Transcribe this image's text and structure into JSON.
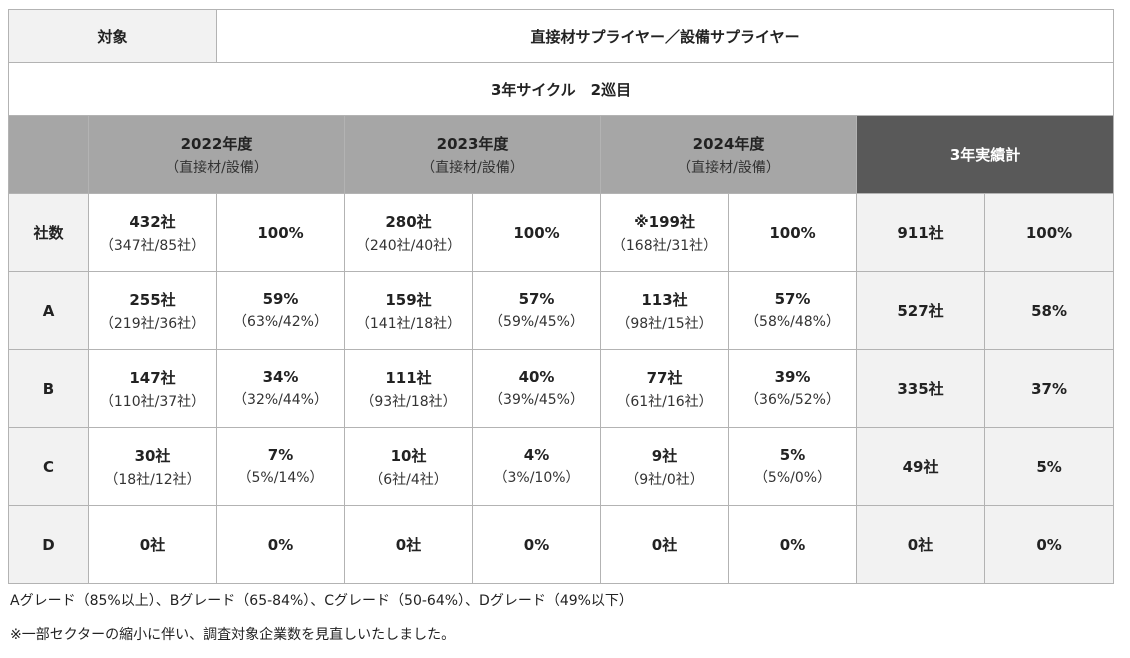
{
  "header": {
    "target_label": "対象",
    "target_value": "直接材サプライヤー／設備サプライヤー",
    "cycle": "3年サイクル　2巡目"
  },
  "years": [
    {
      "title": "2022年度",
      "sub": "（直接材/設備）"
    },
    {
      "title": "2023年度",
      "sub": "（直接材/設備）"
    },
    {
      "title": "2024年度",
      "sub": "（直接材/設備）"
    }
  ],
  "total_header": "3年実績計",
  "rows": [
    {
      "label": "社数",
      "years": [
        {
          "count": "432社",
          "count_sub": "（347社/85社）",
          "pct": "100%",
          "pct_sub": ""
        },
        {
          "count": "280社",
          "count_sub": "（240社/40社）",
          "pct": "100%",
          "pct_sub": ""
        },
        {
          "count": "※199社",
          "count_sub": "（168社/31社）",
          "pct": "100%",
          "pct_sub": ""
        }
      ],
      "total_count": "911社",
      "total_pct": "100%"
    },
    {
      "label": "A",
      "years": [
        {
          "count": "255社",
          "count_sub": "（219社/36社）",
          "pct": "59%",
          "pct_sub": "（63%/42%）"
        },
        {
          "count": "159社",
          "count_sub": "（141社/18社）",
          "pct": "57%",
          "pct_sub": "（59%/45%）"
        },
        {
          "count": "113社",
          "count_sub": "（98社/15社）",
          "pct": "57%",
          "pct_sub": "（58%/48%）"
        }
      ],
      "total_count": "527社",
      "total_pct": "58%"
    },
    {
      "label": "B",
      "years": [
        {
          "count": "147社",
          "count_sub": "（110社/37社）",
          "pct": "34%",
          "pct_sub": "（32%/44%）"
        },
        {
          "count": "111社",
          "count_sub": "（93社/18社）",
          "pct": "40%",
          "pct_sub": "（39%/45%）"
        },
        {
          "count": "77社",
          "count_sub": "（61社/16社）",
          "pct": "39%",
          "pct_sub": "（36%/52%）"
        }
      ],
      "total_count": "335社",
      "total_pct": "37%"
    },
    {
      "label": "C",
      "years": [
        {
          "count": "30社",
          "count_sub": "（18社/12社）",
          "pct": "7%",
          "pct_sub": "（5%/14%）"
        },
        {
          "count": "10社",
          "count_sub": "（6社/4社）",
          "pct": "4%",
          "pct_sub": "（3%/10%）"
        },
        {
          "count": "9社",
          "count_sub": "（9社/0社）",
          "pct": "5%",
          "pct_sub": "（5%/0%）"
        }
      ],
      "total_count": "49社",
      "total_pct": "5%"
    },
    {
      "label": "D",
      "years": [
        {
          "count": "0社",
          "count_sub": "",
          "pct": "0%",
          "pct_sub": ""
        },
        {
          "count": "0社",
          "count_sub": "",
          "pct": "0%",
          "pct_sub": ""
        },
        {
          "count": "0社",
          "count_sub": "",
          "pct": "0%",
          "pct_sub": ""
        }
      ],
      "total_count": "0社",
      "total_pct": "0%"
    }
  ],
  "notes": [
    "Aグレード（85%以上）、Bグレード（65-84%）、Cグレード（50-64%）、Dグレード（49%以下）",
    "※一部セクターの縮小に伴い、調査対象企業数を見直しいたしました。"
  ]
}
